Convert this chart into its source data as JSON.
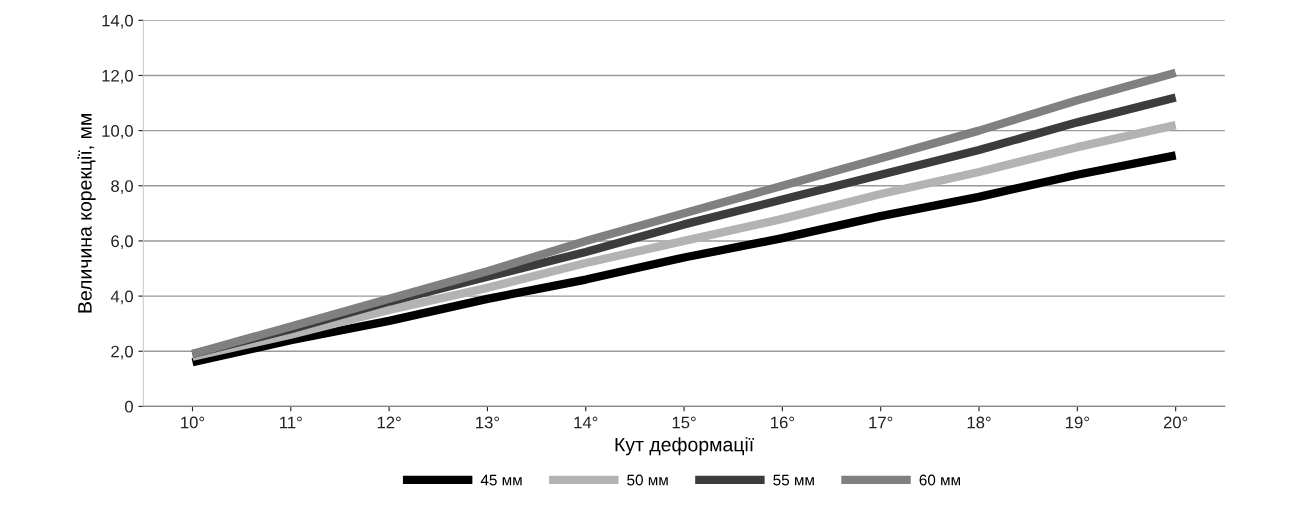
{
  "chart_data": {
    "type": "line",
    "xlabel": "Кут деформації",
    "ylabel": "Величина корекції, мм",
    "categories": [
      "10°",
      "11°",
      "12°",
      "13°",
      "14°",
      "15°",
      "16°",
      "17°",
      "18°",
      "19°",
      "20°"
    ],
    "series": [
      {
        "name": "45 мм",
        "color": "#000000",
        "values": [
          1.6,
          2.4,
          3.1,
          3.9,
          4.6,
          5.4,
          6.1,
          6.9,
          7.6,
          8.4,
          9.1
        ]
      },
      {
        "name": "50 мм",
        "color": "#b3b3b3",
        "values": [
          1.8,
          2.6,
          3.5,
          4.3,
          5.2,
          6.0,
          6.8,
          7.7,
          8.5,
          9.4,
          10.2
        ]
      },
      {
        "name": "55 мм",
        "color": "#3c3c3c",
        "values": [
          1.9,
          2.8,
          3.8,
          4.7,
          5.6,
          6.6,
          7.5,
          8.4,
          9.3,
          10.3,
          11.2
        ]
      },
      {
        "name": "60 мм",
        "color": "#808080",
        "values": [
          1.9,
          2.9,
          3.9,
          4.9,
          6.0,
          7.0,
          8.0,
          9.0,
          10.0,
          11.1,
          12.1
        ]
      }
    ],
    "ylim": [
      0,
      14
    ],
    "yticks": [
      0,
      {
        "value": 2,
        "label": "2,0"
      },
      {
        "value": 4,
        "label": "4,0"
      },
      {
        "value": 6,
        "label": "6,0"
      },
      {
        "value": 8,
        "label": "8,0"
      },
      {
        "value": 10,
        "label": "10,0"
      },
      {
        "value": 12,
        "label": "12,0"
      },
      {
        "value": 14,
        "label": "14,0"
      }
    ],
    "grid": "y",
    "legend": "bottom",
    "marker": "none",
    "line_style": "solid"
  }
}
